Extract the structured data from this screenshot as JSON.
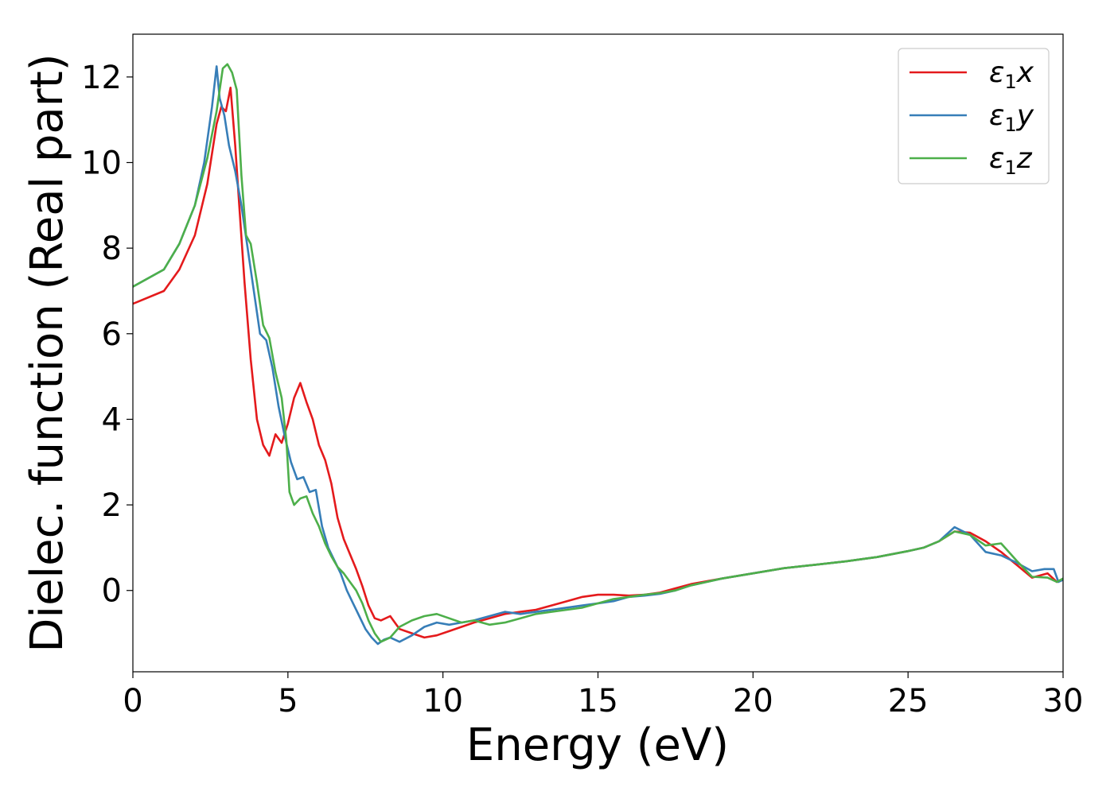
{
  "chart_data": {
    "type": "line",
    "xlabel": "Energy (eV)",
    "ylabel": "Dielec. function (Real part)",
    "xlim": [
      0,
      30
    ],
    "ylim": [
      -1.9,
      13
    ],
    "xticks": [
      0,
      5,
      10,
      15,
      20,
      25,
      30
    ],
    "yticks": [
      0,
      2,
      4,
      6,
      8,
      10,
      12
    ],
    "grid": false,
    "legend_position": "top-right",
    "series": [
      {
        "name": "ε1x",
        "legend_main": "ε",
        "legend_sub": "1",
        "legend_suffix": "x",
        "color": "#e41a1c",
        "x": [
          0,
          1,
          1.5,
          2,
          2.4,
          2.7,
          2.85,
          3.0,
          3.15,
          3.3,
          3.45,
          3.6,
          3.8,
          4.0,
          4.2,
          4.4,
          4.6,
          4.8,
          5.0,
          5.2,
          5.4,
          5.6,
          5.8,
          6.0,
          6.2,
          6.4,
          6.6,
          6.8,
          7.0,
          7.2,
          7.4,
          7.6,
          7.8,
          8.0,
          8.3,
          8.6,
          9.0,
          9.4,
          9.8,
          10.2,
          10.6,
          11.0,
          11.5,
          12.0,
          12.5,
          13.0,
          13.5,
          14.0,
          14.5,
          15.0,
          15.5,
          16.0,
          16.5,
          17.0,
          17.5,
          18.0,
          19.0,
          20.0,
          21.0,
          22.0,
          23.0,
          24.0,
          25.0,
          25.5,
          26.0,
          26.5,
          27.0,
          27.5,
          28.0,
          28.5,
          29.0,
          29.5,
          29.8,
          30.0
        ],
        "y": [
          6.7,
          7.0,
          7.5,
          8.3,
          9.5,
          10.9,
          11.3,
          11.2,
          11.75,
          10.4,
          8.8,
          7.2,
          5.4,
          4.0,
          3.4,
          3.15,
          3.65,
          3.45,
          3.9,
          4.5,
          4.85,
          4.4,
          4.0,
          3.4,
          3.05,
          2.5,
          1.7,
          1.2,
          0.85,
          0.5,
          0.1,
          -0.35,
          -0.65,
          -0.7,
          -0.6,
          -0.9,
          -1.0,
          -1.1,
          -1.05,
          -0.95,
          -0.85,
          -0.75,
          -0.65,
          -0.55,
          -0.5,
          -0.45,
          -0.35,
          -0.25,
          -0.15,
          -0.1,
          -0.1,
          -0.12,
          -0.1,
          -0.05,
          0.05,
          0.15,
          0.28,
          0.4,
          0.52,
          0.6,
          0.68,
          0.78,
          0.92,
          1.0,
          1.15,
          1.38,
          1.35,
          1.15,
          0.9,
          0.6,
          0.3,
          0.4,
          0.2,
          0.25
        ]
      },
      {
        "name": "ε1y",
        "legend_main": "ε",
        "legend_sub": "1",
        "legend_suffix": "y",
        "color": "#377eb8",
        "x": [
          0,
          1,
          1.5,
          2,
          2.3,
          2.55,
          2.7,
          2.8,
          2.95,
          3.1,
          3.3,
          3.5,
          3.7,
          3.9,
          4.1,
          4.3,
          4.5,
          4.7,
          4.9,
          5.1,
          5.3,
          5.5,
          5.7,
          5.9,
          6.1,
          6.3,
          6.5,
          6.7,
          6.9,
          7.1,
          7.3,
          7.5,
          7.7,
          7.9,
          8.1,
          8.3,
          8.6,
          9.0,
          9.4,
          9.8,
          10.2,
          10.6,
          11.0,
          11.5,
          12.0,
          12.5,
          13.0,
          13.5,
          14.0,
          14.5,
          15.0,
          15.5,
          16.0,
          16.5,
          17.0,
          17.5,
          18.0,
          19.0,
          20.0,
          21.0,
          22.0,
          23.0,
          24.0,
          25.0,
          25.5,
          26.0,
          26.5,
          27.0,
          27.5,
          28.0,
          28.5,
          29.0,
          29.4,
          29.7,
          29.85,
          30.0
        ],
        "y": [
          7.1,
          7.5,
          8.1,
          9.0,
          10.0,
          11.3,
          12.25,
          11.5,
          11.1,
          10.4,
          9.8,
          9.0,
          8.0,
          7.0,
          6.0,
          5.85,
          5.2,
          4.3,
          3.6,
          3.0,
          2.6,
          2.65,
          2.3,
          2.35,
          1.5,
          1.0,
          0.7,
          0.4,
          0.0,
          -0.3,
          -0.6,
          -0.9,
          -1.1,
          -1.25,
          -1.15,
          -1.1,
          -1.2,
          -1.05,
          -0.85,
          -0.75,
          -0.8,
          -0.75,
          -0.7,
          -0.6,
          -0.5,
          -0.55,
          -0.5,
          -0.45,
          -0.4,
          -0.35,
          -0.3,
          -0.25,
          -0.15,
          -0.12,
          -0.08,
          0.0,
          0.12,
          0.28,
          0.4,
          0.52,
          0.6,
          0.68,
          0.78,
          0.92,
          1.0,
          1.15,
          1.48,
          1.3,
          0.9,
          0.82,
          0.65,
          0.45,
          0.5,
          0.5,
          0.2,
          0.25
        ]
      },
      {
        "name": "ε1z",
        "legend_main": "ε",
        "legend_sub": "1",
        "legend_suffix": "z",
        "color": "#4daf4a",
        "x": [
          0,
          1,
          1.5,
          2,
          2.4,
          2.7,
          2.9,
          3.05,
          3.2,
          3.35,
          3.5,
          3.65,
          3.8,
          4.0,
          4.2,
          4.4,
          4.6,
          4.8,
          4.95,
          5.05,
          5.2,
          5.4,
          5.6,
          5.8,
          6.0,
          6.2,
          6.4,
          6.6,
          6.8,
          7.0,
          7.2,
          7.4,
          7.6,
          7.8,
          8.0,
          8.3,
          8.6,
          9.0,
          9.4,
          9.8,
          10.2,
          10.6,
          11.0,
          11.5,
          12.0,
          12.5,
          13.0,
          13.5,
          14.0,
          14.5,
          15.0,
          15.5,
          16.0,
          16.5,
          17.0,
          17.5,
          18.0,
          19.0,
          20.0,
          21.0,
          22.0,
          23.0,
          24.0,
          25.0,
          25.5,
          26.0,
          26.5,
          27.0,
          27.5,
          28.0,
          28.5,
          29.0,
          29.5,
          29.8,
          30.0
        ],
        "y": [
          7.1,
          7.5,
          8.1,
          9.0,
          10.1,
          11.2,
          12.2,
          12.3,
          12.1,
          11.7,
          9.7,
          8.3,
          8.1,
          7.2,
          6.2,
          5.9,
          5.1,
          4.5,
          3.5,
          2.3,
          2.0,
          2.15,
          2.2,
          1.8,
          1.5,
          1.1,
          0.8,
          0.55,
          0.4,
          0.2,
          0.0,
          -0.3,
          -0.7,
          -1.0,
          -1.2,
          -1.1,
          -0.85,
          -0.7,
          -0.6,
          -0.55,
          -0.65,
          -0.75,
          -0.7,
          -0.8,
          -0.75,
          -0.65,
          -0.55,
          -0.5,
          -0.45,
          -0.4,
          -0.3,
          -0.2,
          -0.15,
          -0.1,
          -0.06,
          0.0,
          0.12,
          0.28,
          0.4,
          0.52,
          0.6,
          0.68,
          0.78,
          0.92,
          1.0,
          1.15,
          1.38,
          1.3,
          1.05,
          1.1,
          0.7,
          0.32,
          0.3,
          0.2,
          0.28
        ]
      }
    ]
  }
}
